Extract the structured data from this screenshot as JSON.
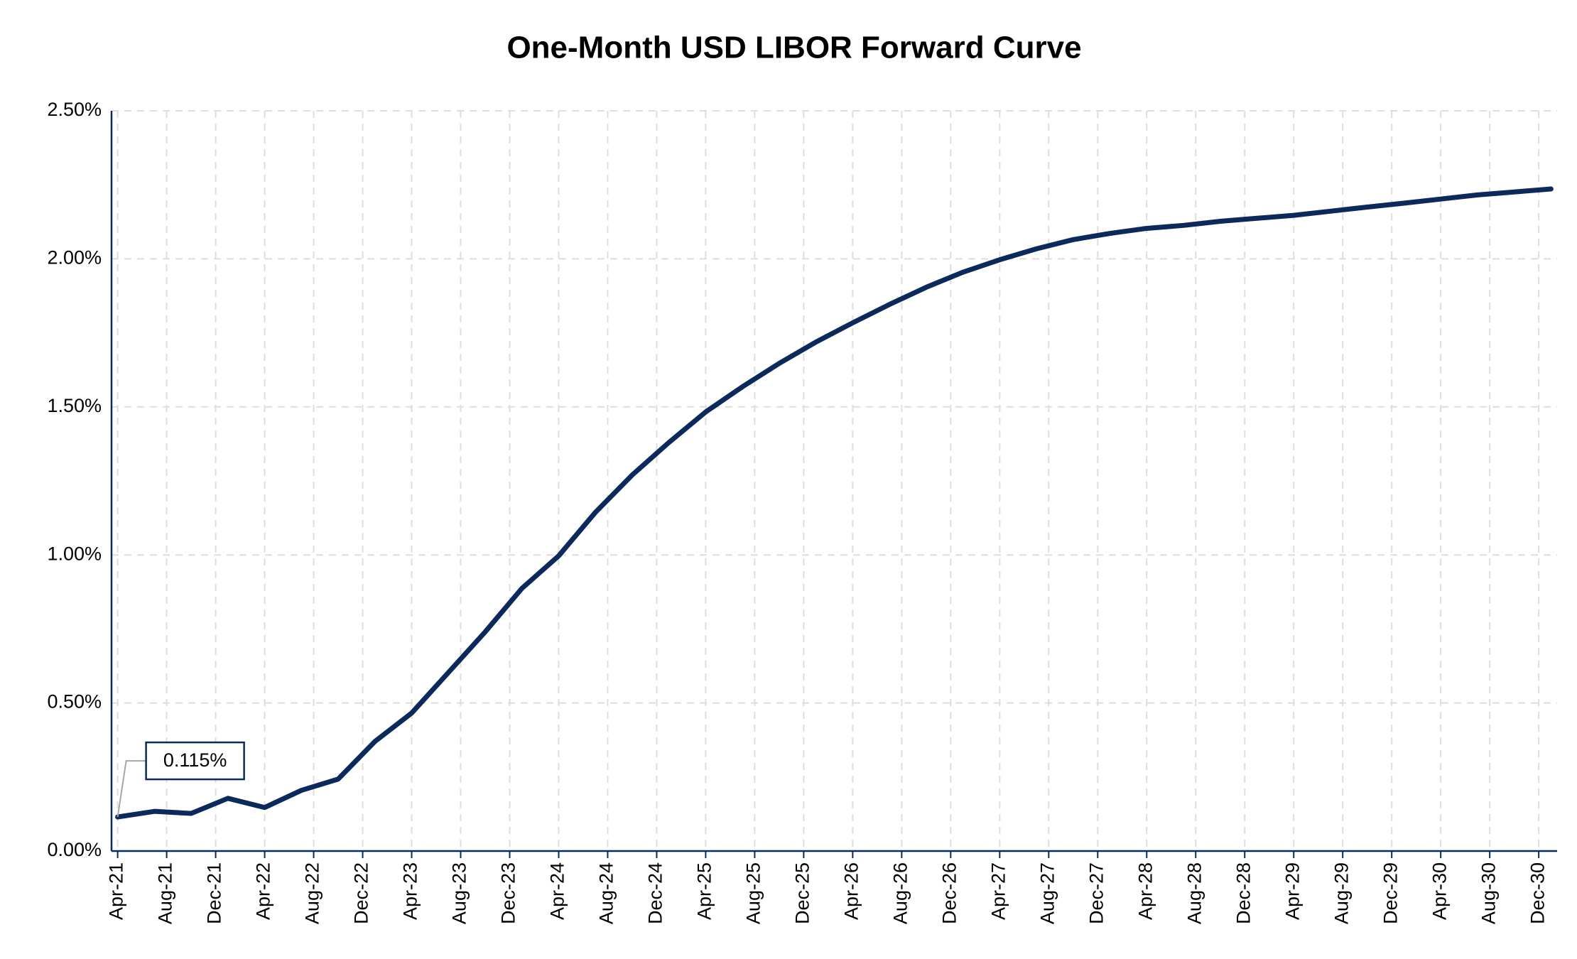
{
  "chart_data": {
    "type": "line",
    "title": "One-Month USD LIBOR Forward Curve",
    "x": [
      0,
      3,
      6,
      9,
      12,
      15,
      18,
      21,
      24,
      27,
      30,
      33,
      36,
      39,
      42,
      45,
      48,
      51,
      54,
      57,
      60,
      63,
      66,
      69,
      72,
      75,
      78,
      81,
      84,
      87,
      90,
      93,
      96,
      99,
      102,
      105,
      108,
      111,
      114,
      117
    ],
    "series": [
      {
        "name": "One-Month USD LIBOR",
        "color": "#0b2a5b",
        "values": [
          0.115,
          0.134,
          0.127,
          0.178,
          0.147,
          0.205,
          0.243,
          0.37,
          0.466,
          0.603,
          0.74,
          0.887,
          0.997,
          1.144,
          1.27,
          1.38,
          1.483,
          1.568,
          1.647,
          1.719,
          1.784,
          1.846,
          1.904,
          1.955,
          1.997,
          2.034,
          2.065,
          2.086,
          2.103,
          2.113,
          2.127,
          2.137,
          2.147,
          2.161,
          2.175,
          2.188,
          2.202,
          2.216,
          2.226,
          2.236
        ],
        "value_labels": [
          "0.115%",
          null,
          null,
          null,
          null,
          null,
          null,
          null,
          null,
          null,
          null,
          null,
          null,
          null,
          null,
          null,
          null,
          null,
          null,
          null,
          null,
          null,
          null,
          null,
          null,
          null,
          null,
          null,
          null,
          null,
          null,
          null,
          null,
          null,
          null,
          null,
          null,
          null,
          null,
          null
        ]
      }
    ],
    "xlim": [
      -0.5,
      117.5
    ],
    "xticks": [
      {
        "value": 0,
        "label": "Apr-21"
      },
      {
        "value": 4,
        "label": "Aug-21"
      },
      {
        "value": 8,
        "label": "Dec-21"
      },
      {
        "value": 12,
        "label": "Apr-22"
      },
      {
        "value": 16,
        "label": "Aug-22"
      },
      {
        "value": 20,
        "label": "Dec-22"
      },
      {
        "value": 24,
        "label": "Apr-23"
      },
      {
        "value": 28,
        "label": "Aug-23"
      },
      {
        "value": 32,
        "label": "Dec-23"
      },
      {
        "value": 36,
        "label": "Apr-24"
      },
      {
        "value": 40,
        "label": "Aug-24"
      },
      {
        "value": 44,
        "label": "Dec-24"
      },
      {
        "value": 48,
        "label": "Apr-25"
      },
      {
        "value": 52,
        "label": "Aug-25"
      },
      {
        "value": 56,
        "label": "Dec-25"
      },
      {
        "value": 60,
        "label": "Apr-26"
      },
      {
        "value": 64,
        "label": "Aug-26"
      },
      {
        "value": 68,
        "label": "Dec-26"
      },
      {
        "value": 72,
        "label": "Apr-27"
      },
      {
        "value": 76,
        "label": "Aug-27"
      },
      {
        "value": 80,
        "label": "Dec-27"
      },
      {
        "value": 84,
        "label": "Apr-28"
      },
      {
        "value": 88,
        "label": "Aug-28"
      },
      {
        "value": 92,
        "label": "Dec-28"
      },
      {
        "value": 96,
        "label": "Apr-29"
      },
      {
        "value": 100,
        "label": "Aug-29"
      },
      {
        "value": 104,
        "label": "Dec-29"
      },
      {
        "value": 108,
        "label": "Apr-30"
      },
      {
        "value": 112,
        "label": "Aug-30"
      },
      {
        "value": 116,
        "label": "Dec-30"
      }
    ],
    "ylim": [
      0,
      2.5
    ],
    "yticks": [
      {
        "value": 0,
        "label": "0.00%"
      },
      {
        "value": 0.5,
        "label": "0.50%"
      },
      {
        "value": 1,
        "label": "1.00%"
      },
      {
        "value": 1.5,
        "label": "1.50%"
      },
      {
        "value": 2,
        "label": "2.00%"
      },
      {
        "value": 2.5,
        "label": "2.50%"
      }
    ],
    "grid": true
  }
}
